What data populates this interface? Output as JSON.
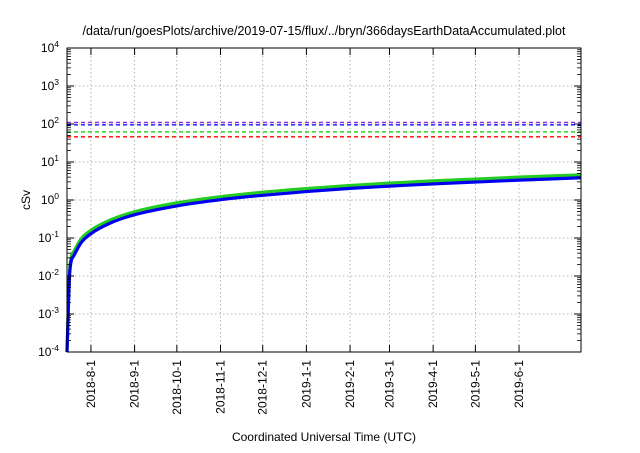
{
  "chart_data": {
    "type": "line",
    "title": "/data/run/goesPlots/archive/2019-07-15/flux/../bryn/366daysEarthDataAccumulated.plot",
    "xlabel": "Coordinated Universal Time (UTC)",
    "ylabel": "cSv",
    "y_scale": "log",
    "ylim": [
      0.0001,
      10000
    ],
    "xlim": [
      "2018-07-15",
      "2019-07-15"
    ],
    "grid": true,
    "x_ticks": [
      "2018-8-1",
      "2018-9-1",
      "2018-10-1",
      "2018-11-1",
      "2018-12-1",
      "2019-1-1",
      "2019-2-1",
      "2019-3-1",
      "2019-4-1",
      "2019-5-1",
      "2019-6-1"
    ],
    "y_ticks": [
      {
        "value": 0.0001,
        "base": "10",
        "exp": "-4"
      },
      {
        "value": 0.001,
        "base": "10",
        "exp": "-3"
      },
      {
        "value": 0.01,
        "base": "10",
        "exp": "-2"
      },
      {
        "value": 0.1,
        "base": "10",
        "exp": "-1"
      },
      {
        "value": 1,
        "base": "10",
        "exp": "0"
      },
      {
        "value": 10,
        "base": "10",
        "exp": "1"
      },
      {
        "value": 100,
        "base": "10",
        "exp": "2"
      },
      {
        "value": 1000,
        "base": "10",
        "exp": "3"
      },
      {
        "value": 10000,
        "base": "10",
        "exp": "4"
      }
    ],
    "thresholds": [
      {
        "value": 110,
        "color": "#8a2be2"
      },
      {
        "value": 95,
        "color": "#0000ff"
      },
      {
        "value": 62,
        "color": "#00cc00"
      },
      {
        "value": 46,
        "color": "#ff0000"
      }
    ],
    "series": [
      {
        "color": "#22cc22",
        "x": [
          "2018-07-15",
          "2018-07-17",
          "2018-07-20",
          "2018-07-25",
          "2018-08-01",
          "2018-08-15",
          "2018-09-01",
          "2018-10-01",
          "2018-11-01",
          "2018-12-01",
          "2019-01-01",
          "2019-02-01",
          "2019-03-01",
          "2019-04-01",
          "2019-05-01",
          "2019-06-01",
          "2019-07-15"
        ],
        "y": [
          0.0001,
          0.017,
          0.045,
          0.095,
          0.16,
          0.3,
          0.49,
          0.84,
          1.22,
          1.6,
          2.0,
          2.42,
          2.78,
          3.18,
          3.56,
          4.0,
          4.6
        ]
      },
      {
        "color": "#0000ee",
        "x": [
          "2018-07-15",
          "2018-07-17",
          "2018-07-20",
          "2018-07-25",
          "2018-08-01",
          "2018-08-15",
          "2018-09-01",
          "2018-10-01",
          "2018-11-01",
          "2018-12-01",
          "2019-01-01",
          "2019-02-01",
          "2019-03-01",
          "2019-04-01",
          "2019-05-01",
          "2019-06-01",
          "2019-07-15"
        ],
        "y": [
          0.0001,
          0.013,
          0.035,
          0.075,
          0.13,
          0.25,
          0.41,
          0.7,
          1.02,
          1.33,
          1.67,
          2.02,
          2.32,
          2.65,
          2.97,
          3.33,
          3.85
        ]
      }
    ]
  }
}
